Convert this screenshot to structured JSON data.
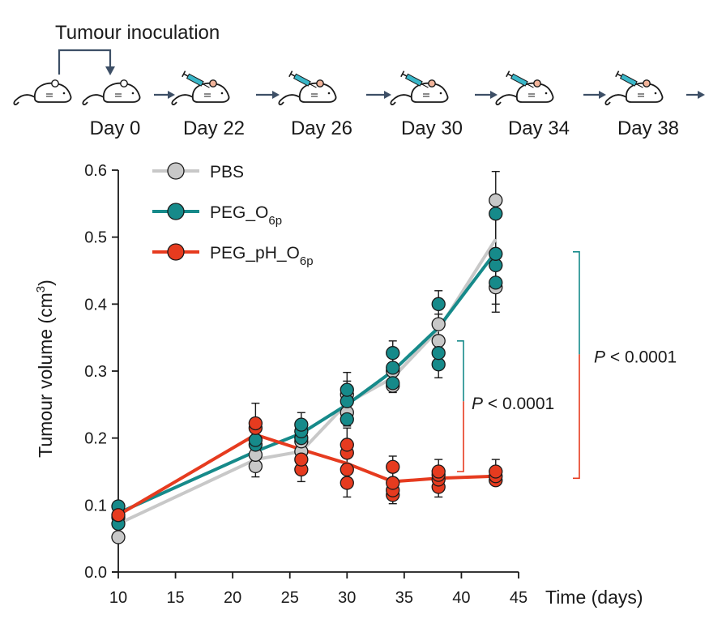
{
  "schematic": {
    "inoculation_label": "Tumour inoculation",
    "days": [
      "Day 0",
      "Day 22",
      "Day 26",
      "Day 30",
      "Day 34",
      "Day 38"
    ]
  },
  "colors": {
    "pbs": "#c8c8c8",
    "peg_o6p": "#168a8a",
    "peg_ph_o6p": "#e63b1f",
    "axis": "#1a1a1a",
    "mouse_ear": "#f2b49a",
    "syringe": "#39b7c9",
    "arrow": "#3d4f66"
  },
  "chart_data": {
    "type": "scatter",
    "title": "",
    "xlabel": "Time (days)",
    "ylabel": "Tumour volume (cm",
    "ylabel_sup": "3",
    "ylabel_close": ")",
    "xlim": [
      10,
      45
    ],
    "ylim": [
      0.0,
      0.6
    ],
    "xticks": [
      10,
      15,
      20,
      25,
      30,
      35,
      40,
      45
    ],
    "yticks": [
      "0.0",
      "0.1",
      "0.2",
      "0.3",
      "0.4",
      "0.5",
      "0.6"
    ],
    "legend_position": "top-left",
    "series": [
      {
        "name": "PBS",
        "name_base": "PBS",
        "name_sub": "",
        "color_key": "pbs",
        "mean": [
          [
            10,
            0.072
          ],
          [
            22,
            0.168
          ],
          [
            26,
            0.18
          ],
          [
            30,
            0.252
          ],
          [
            34,
            0.29
          ],
          [
            38,
            0.362
          ],
          [
            43,
            0.497
          ]
        ],
        "err": [
          [
            22,
            0.142,
            0.18
          ],
          [
            26,
            0.158,
            0.202
          ],
          [
            30,
            0.218,
            0.285
          ],
          [
            34,
            0.268,
            0.312
          ],
          [
            38,
            0.335,
            0.385
          ],
          [
            43,
            0.388,
            0.598
          ]
        ],
        "points": [
          [
            10,
            0.052
          ],
          [
            10,
            0.082
          ],
          [
            22,
            0.158
          ],
          [
            22,
            0.175
          ],
          [
            26,
            0.18
          ],
          [
            26,
            0.195
          ],
          [
            30,
            0.238
          ],
          [
            30,
            0.265
          ],
          [
            34,
            0.278
          ],
          [
            34,
            0.3
          ],
          [
            38,
            0.345
          ],
          [
            38,
            0.37
          ],
          [
            43,
            0.425
          ],
          [
            43,
            0.555
          ]
        ]
      },
      {
        "name": "PEG_O6p",
        "name_base": "PEG_O",
        "name_sub": "6p",
        "color_key": "peg_o6p",
        "mean": [
          [
            10,
            0.088
          ],
          [
            22,
            0.18
          ],
          [
            26,
            0.207
          ],
          [
            30,
            0.25
          ],
          [
            34,
            0.3
          ],
          [
            38,
            0.365
          ],
          [
            43,
            0.478
          ]
        ],
        "err": [
          [
            22,
            0.165,
            0.205
          ],
          [
            26,
            0.18,
            0.238
          ],
          [
            30,
            0.225,
            0.298
          ],
          [
            34,
            0.27,
            0.345
          ],
          [
            38,
            0.29,
            0.42
          ],
          [
            43,
            0.4,
            0.555
          ]
        ],
        "points": [
          [
            10,
            0.072
          ],
          [
            10,
            0.098
          ],
          [
            22,
            0.19
          ],
          [
            22,
            0.197
          ],
          [
            26,
            0.2
          ],
          [
            26,
            0.21
          ],
          [
            26,
            0.22
          ],
          [
            30,
            0.228
          ],
          [
            30,
            0.255
          ],
          [
            30,
            0.272
          ],
          [
            34,
            0.282
          ],
          [
            34,
            0.305
          ],
          [
            34,
            0.327
          ],
          [
            38,
            0.31
          ],
          [
            38,
            0.327
          ],
          [
            38,
            0.4
          ],
          [
            43,
            0.432
          ],
          [
            43,
            0.458
          ],
          [
            43,
            0.475
          ],
          [
            43,
            0.535
          ]
        ]
      },
      {
        "name": "PEG_pH_O6p",
        "name_base": "PEG_pH_O",
        "name_sub": "6p",
        "color_key": "peg_ph_o6p",
        "mean": [
          [
            10,
            0.085
          ],
          [
            22,
            0.205
          ],
          [
            26,
            0.183
          ],
          [
            30,
            0.162
          ],
          [
            34,
            0.135
          ],
          [
            38,
            0.14
          ],
          [
            43,
            0.143
          ]
        ],
        "err": [
          [
            22,
            0.182,
            0.252
          ],
          [
            26,
            0.135,
            0.215
          ],
          [
            30,
            0.112,
            0.215
          ],
          [
            34,
            0.102,
            0.173
          ],
          [
            38,
            0.112,
            0.168
          ],
          [
            43,
            0.13,
            0.168
          ]
        ],
        "points": [
          [
            10,
            0.085
          ],
          [
            22,
            0.215
          ],
          [
            22,
            0.222
          ],
          [
            26,
            0.153
          ],
          [
            26,
            0.168
          ],
          [
            30,
            0.133
          ],
          [
            30,
            0.153
          ],
          [
            30,
            0.178
          ],
          [
            30,
            0.19
          ],
          [
            34,
            0.115
          ],
          [
            34,
            0.122
          ],
          [
            34,
            0.133
          ],
          [
            34,
            0.157
          ],
          [
            38,
            0.127
          ],
          [
            38,
            0.138
          ],
          [
            38,
            0.145
          ],
          [
            38,
            0.15
          ],
          [
            43,
            0.137
          ],
          [
            43,
            0.143
          ],
          [
            43,
            0.15
          ]
        ]
      }
    ],
    "annotations": [
      {
        "text": "< 0.0001",
        "italic_prefix": "P",
        "y_top": 0.345,
        "y_mid": 0.255,
        "y_bottom": 0.15,
        "side": "inner"
      },
      {
        "text": "< 0.0001",
        "italic_prefix": "P",
        "y_top": 0.478,
        "y_mid": 0.325,
        "y_bottom": 0.14,
        "side": "outer"
      }
    ]
  }
}
